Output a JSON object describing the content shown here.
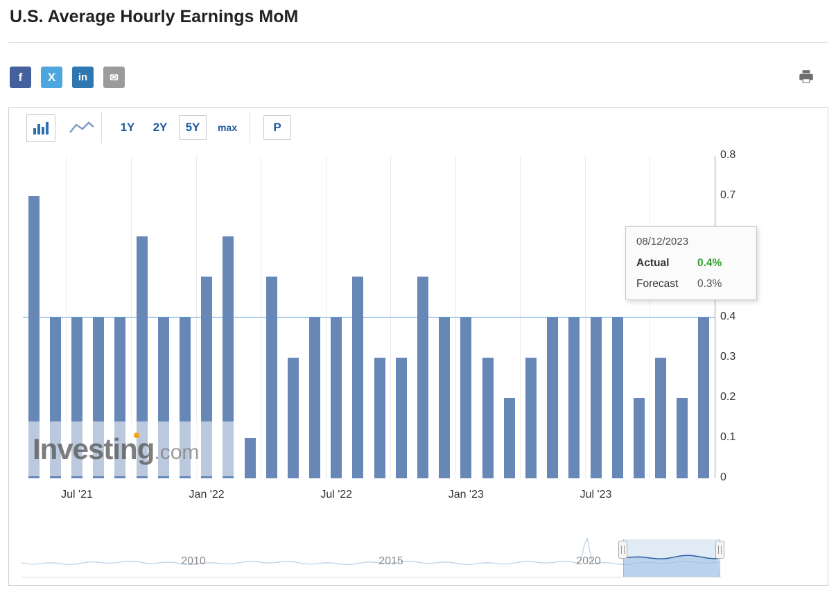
{
  "header": {
    "title": "U.S. Average Hourly Earnings MoM"
  },
  "share": {
    "buttons": [
      {
        "name": "facebook",
        "glyph": "f",
        "color": "#44619d"
      },
      {
        "name": "x-twitter",
        "glyph": "X",
        "color": "#4da7de"
      },
      {
        "name": "linkedin",
        "glyph": "in",
        "color": "#2e77b0"
      },
      {
        "name": "email",
        "glyph": "✉",
        "color": "#9b9b9b"
      }
    ]
  },
  "toolbar": {
    "range_buttons": [
      {
        "label": "1Y",
        "active": false
      },
      {
        "label": "2Y",
        "active": false
      },
      {
        "label": "5Y",
        "active": true
      },
      {
        "label": "max",
        "active": false
      }
    ],
    "p_button_label": "P"
  },
  "chart_data": {
    "type": "bar",
    "title": "U.S. Average Hourly Earnings MoM",
    "unit": "%",
    "categories": [
      "May '21",
      "Jun '21",
      "Jul '21",
      "Aug '21",
      "Sep '21",
      "Oct '21",
      "Nov '21",
      "Dec '21",
      "Jan '22",
      "Feb '22",
      "Mar '22",
      "Apr '22",
      "May '22",
      "Jun '22",
      "Jul '22",
      "Aug '22",
      "Sep '22",
      "Oct '22",
      "Nov '22",
      "Dec '22",
      "Jan '23",
      "Feb '23",
      "Mar '23",
      "Apr '23",
      "May '23",
      "Jun '23",
      "Jul '23",
      "Aug '23",
      "Sep '23",
      "Oct '23",
      "Nov '23",
      "Dec '23"
    ],
    "values": [
      0.7,
      0.4,
      0.4,
      0.4,
      0.4,
      0.6,
      0.4,
      0.4,
      0.5,
      0.6,
      0.1,
      0.5,
      0.3,
      0.4,
      0.4,
      0.5,
      0.3,
      0.3,
      0.5,
      0.4,
      0.4,
      0.3,
      0.2,
      0.3,
      0.4,
      0.4,
      0.4,
      0.4,
      0.2,
      0.3,
      0.2,
      0.4
    ],
    "ylim": [
      0,
      0.8
    ],
    "yticks": [
      "0.8",
      "0.7",
      "0.6",
      "0.5",
      "0.4",
      "0.3",
      "0.2",
      "0.1",
      "0"
    ],
    "x_tick_labels": [
      "Jul '21",
      "Jan '22",
      "Jul '22",
      "Jan '23",
      "Jul '23"
    ],
    "x_tick_indices": [
      2,
      8,
      14,
      20,
      26
    ],
    "current_value_line": 0.4,
    "bar_color": "#6787b7",
    "line_color": "#5b9bd5",
    "grid": "vertical-only",
    "legend": "none",
    "yaxis_position": "right"
  },
  "tooltip": {
    "date": "08/12/2023",
    "actual_label": "Actual",
    "actual_value": "0.4%",
    "actual_color": "#31a031",
    "forecast_label": "Forecast",
    "forecast_value": "0.3%"
  },
  "watermark": {
    "brand": "Investing",
    "suffix": ".com",
    "dot_color": "#f7a21b"
  },
  "navigator": {
    "year_labels": [
      "2010",
      "2015",
      "2020"
    ]
  }
}
